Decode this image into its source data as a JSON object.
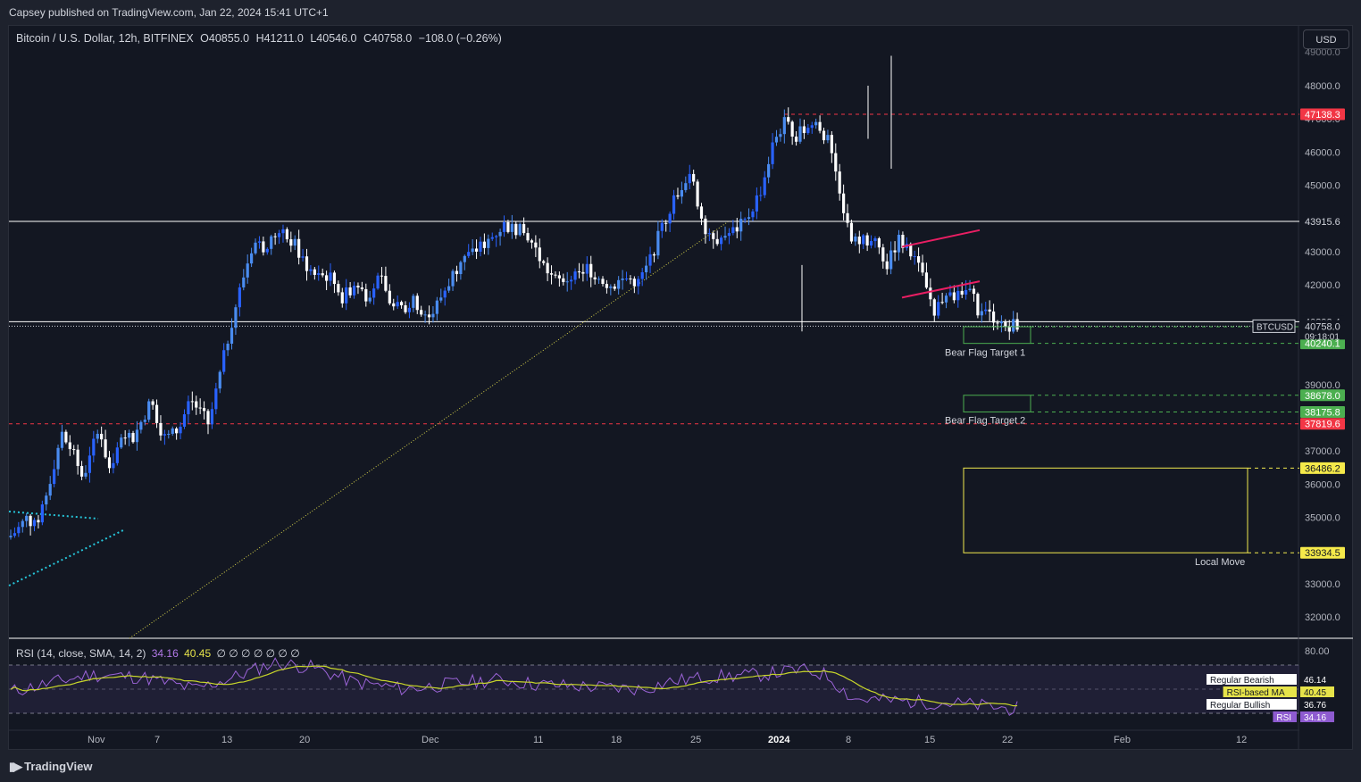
{
  "publisher_line": "Capsey published on TradingView.com, Jan 22, 2024 15:41 UTC+1",
  "legend": {
    "symbol": "Bitcoin / U.S. Dollar, 12h, BITFINEX",
    "open": "O40855.0",
    "high": "H41211.0",
    "low": "L40546.0",
    "close": "C40758.0",
    "change": "−108.0 (−0.26%)"
  },
  "currency_button": "USD",
  "brand": "TradingView",
  "colors": {
    "background": "#131722",
    "frame": "#1e222d",
    "up_candle": "#2962ff",
    "up_candle_light": "#4a8cf0",
    "down_candle": "#ffffff",
    "resistance_red": "#f23645",
    "support_green": "#4caf50",
    "local_move_yellow": "#f2e94e",
    "bear_flag_pink": "#e91e63",
    "trendline_yellow": "#d4d04a",
    "triangle_cyan": "#26c6da",
    "rsi_line": "#9c64d8",
    "rsi_ma": "#c8d62a"
  },
  "chart_data": {
    "type": "candlestick",
    "symbol": "BTCUSD",
    "timeframe": "12h",
    "ylim": [
      31500,
      49000
    ],
    "y_tick_labels": [
      "48000.0",
      "47000.0",
      "46000.0",
      "45000.0",
      "43000.0",
      "42000.0",
      "39000.0",
      "37000.0",
      "36000.0",
      "35000.0",
      "33000.0",
      "32000.0"
    ],
    "x_tick_labels": [
      "Nov",
      "7",
      "13",
      "20",
      "Dec",
      "11",
      "18",
      "25",
      "2024",
      "8",
      "15",
      "22",
      "Feb",
      "12"
    ],
    "last_price": 40758.0,
    "countdown": "09:18:01",
    "price_labels": [
      {
        "value": 47138.3,
        "text": "47138.3",
        "kind": "red"
      },
      {
        "value": 43915.6,
        "text": "43915.6",
        "kind": "plain"
      },
      {
        "value": 40893.4,
        "text": "40893.4",
        "kind": "plain"
      },
      {
        "value": 40742.2,
        "text": "40742.2",
        "kind": "green"
      },
      {
        "value": 40240.1,
        "text": "40240.1",
        "kind": "green"
      },
      {
        "value": 38678.0,
        "text": "38678.0",
        "kind": "green"
      },
      {
        "value": 38175.8,
        "text": "38175.8",
        "kind": "green"
      },
      {
        "value": 37819.6,
        "text": "37819.6",
        "kind": "red"
      },
      {
        "value": 36486.2,
        "text": "36486.2",
        "kind": "yellow"
      },
      {
        "value": 33934.5,
        "text": "33934.5",
        "kind": "yellow"
      }
    ],
    "ticker_tag": "BTCUSD",
    "annotations": [
      {
        "text": "Bear Flag Target 1",
        "price_top": 40742.2,
        "price_bottom": 40240.1
      },
      {
        "text": "Bear Flag Target 2",
        "price_top": 38678.0,
        "price_bottom": 38175.8
      },
      {
        "text": "Local Move",
        "price_top": 36486.2,
        "price_bottom": 33934.5
      }
    ],
    "rsi": {
      "legend": "RSI (14, close, SMA, 14, 2)",
      "value": "34.16",
      "ma_value": "40.45",
      "extra": "∅ ∅ ∅ ∅ ∅ ∅ ∅",
      "scale_label": "80.00",
      "labels": [
        {
          "name": "Regular Bearish",
          "value": "46.14"
        },
        {
          "name": "RSI-based MA",
          "value": "40.45"
        },
        {
          "name": "Regular Bullish",
          "value": "36.76"
        },
        {
          "name": "RSI",
          "value": "34.16"
        }
      ]
    }
  }
}
